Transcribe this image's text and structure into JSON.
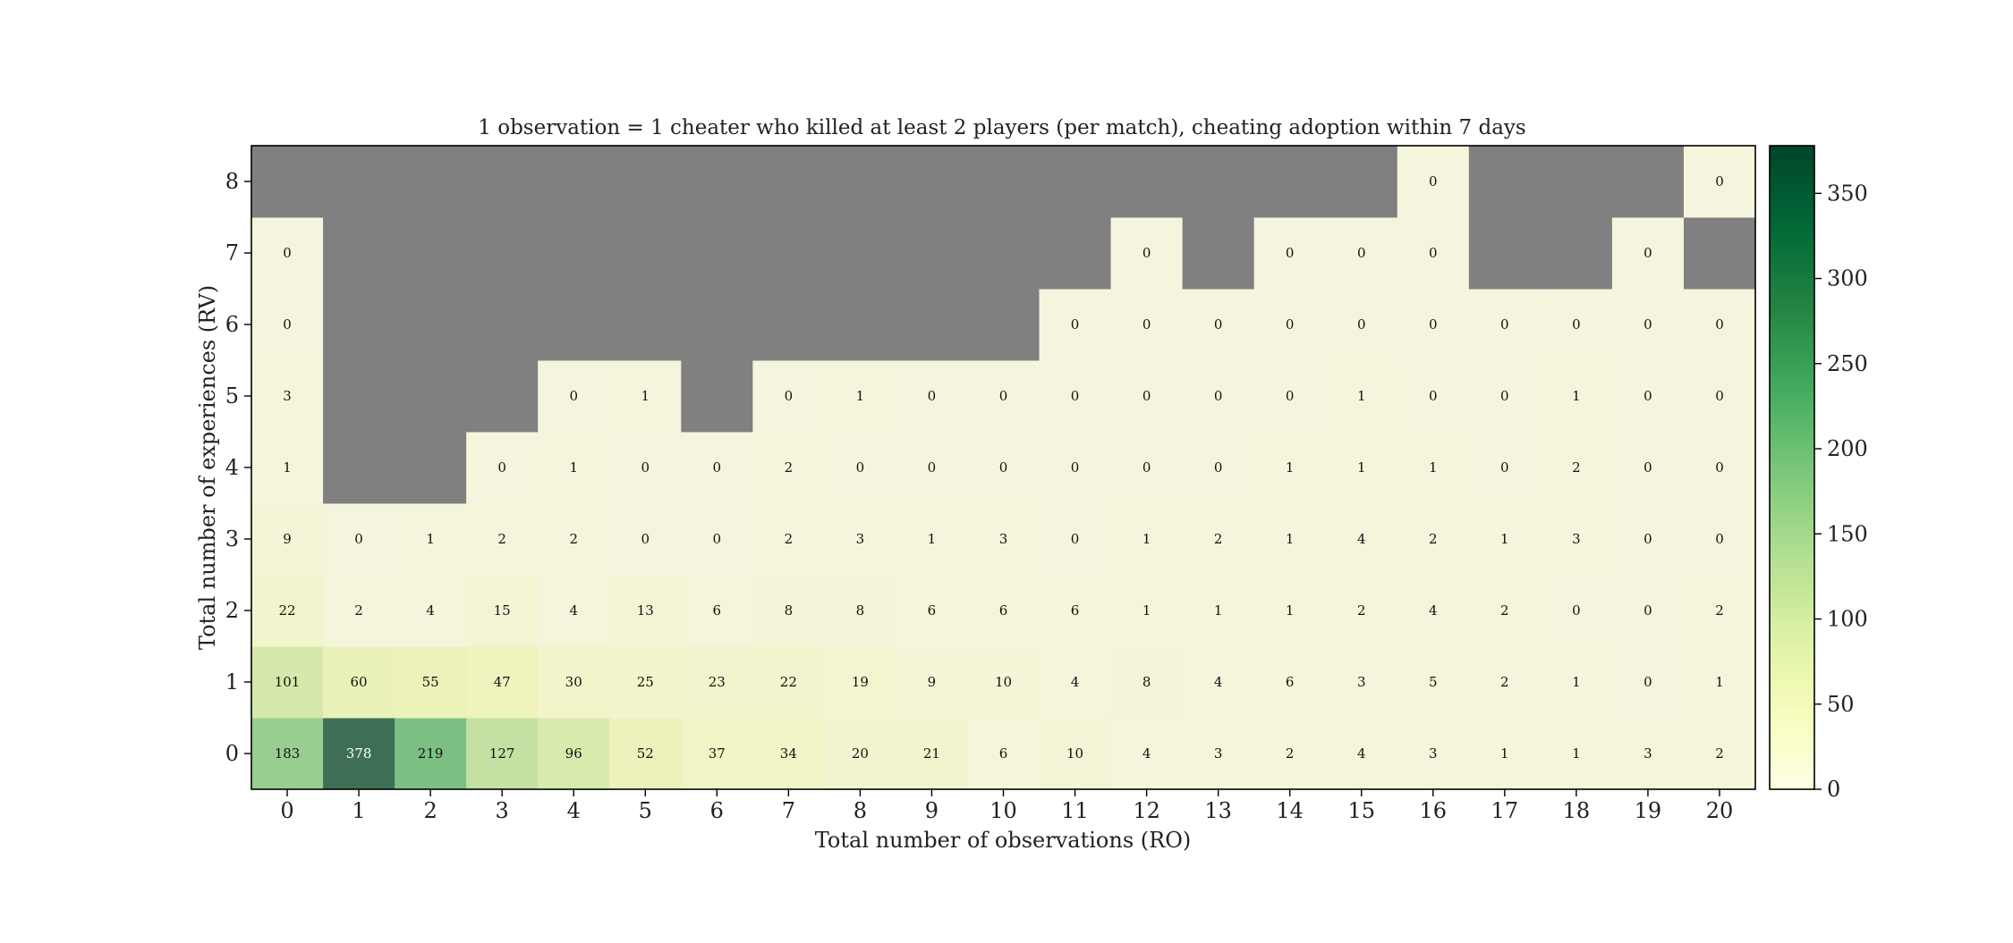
{
  "chart_data": {
    "type": "heatmap",
    "title": "1 observation = 1 cheater who killed at least 2 players (per match), cheating adoption within 7 days",
    "xlabel": "Total number of observations (RO)",
    "ylabel": "Total number of experiences (RV)",
    "x": [
      "0",
      "1",
      "2",
      "3",
      "4",
      "5",
      "6",
      "7",
      "8",
      "9",
      "10",
      "11",
      "12",
      "13",
      "14",
      "15",
      "16",
      "17",
      "18",
      "19",
      "20"
    ],
    "y": [
      "0",
      "1",
      "2",
      "3",
      "4",
      "5",
      "6",
      "7",
      "8"
    ],
    "values": [
      [
        183,
        378,
        219,
        127,
        96,
        52,
        37,
        34,
        20,
        21,
        6,
        10,
        4,
        3,
        2,
        4,
        3,
        1,
        1,
        3,
        2
      ],
      [
        101,
        60,
        55,
        47,
        30,
        25,
        23,
        22,
        19,
        9,
        10,
        4,
        8,
        4,
        6,
        3,
        5,
        2,
        1,
        0,
        1
      ],
      [
        22,
        2,
        4,
        15,
        4,
        13,
        6,
        8,
        8,
        6,
        6,
        6,
        1,
        1,
        1,
        2,
        4,
        2,
        0,
        0,
        2
      ],
      [
        9,
        0,
        1,
        2,
        2,
        0,
        0,
        2,
        3,
        1,
        3,
        0,
        1,
        2,
        1,
        4,
        2,
        1,
        3,
        0,
        0
      ],
      [
        1,
        null,
        null,
        0,
        1,
        0,
        0,
        2,
        0,
        0,
        0,
        0,
        0,
        0,
        1,
        1,
        1,
        0,
        2,
        0,
        0
      ],
      [
        3,
        null,
        null,
        null,
        0,
        1,
        null,
        0,
        1,
        0,
        0,
        0,
        0,
        0,
        0,
        1,
        0,
        0,
        1,
        0,
        0
      ],
      [
        0,
        null,
        null,
        null,
        null,
        null,
        null,
        null,
        null,
        null,
        null,
        0,
        0,
        0,
        0,
        0,
        0,
        0,
        0,
        0,
        0
      ],
      [
        0,
        null,
        null,
        null,
        null,
        null,
        null,
        null,
        null,
        null,
        null,
        null,
        0,
        null,
        0,
        0,
        0,
        null,
        null,
        0,
        null
      ],
      [
        null,
        null,
        null,
        null,
        null,
        null,
        null,
        null,
        null,
        null,
        null,
        null,
        null,
        null,
        null,
        null,
        0,
        null,
        null,
        null,
        0
      ]
    ],
    "missing_color": "#808080",
    "colormap": "YlGn",
    "colorbar": {
      "min": 0,
      "max": 378,
      "ticks": [
        0,
        50,
        100,
        150,
        200,
        250,
        300,
        350
      ]
    },
    "grid": false
  }
}
